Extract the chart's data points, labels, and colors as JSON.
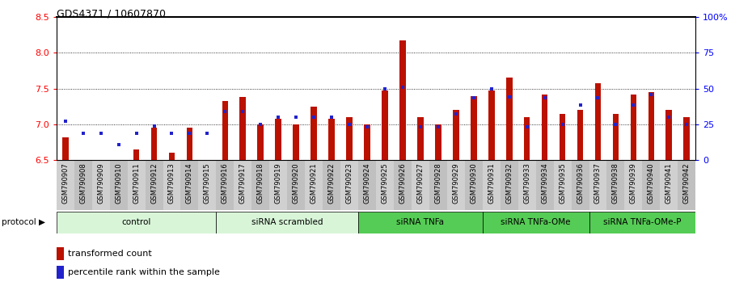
{
  "title": "GDS4371 / 10607870",
  "samples": [
    "GSM790907",
    "GSM790908",
    "GSM790909",
    "GSM790910",
    "GSM790911",
    "GSM790912",
    "GSM790913",
    "GSM790914",
    "GSM790915",
    "GSM790916",
    "GSM790917",
    "GSM790918",
    "GSM790919",
    "GSM790920",
    "GSM790921",
    "GSM790922",
    "GSM790923",
    "GSM790924",
    "GSM790925",
    "GSM790926",
    "GSM790927",
    "GSM790928",
    "GSM790929",
    "GSM790930",
    "GSM790931",
    "GSM790932",
    "GSM790933",
    "GSM790934",
    "GSM790935",
    "GSM790936",
    "GSM790937",
    "GSM790938",
    "GSM790939",
    "GSM790940",
    "GSM790941",
    "GSM790942"
  ],
  "red_values": [
    6.82,
    6.5,
    6.5,
    6.5,
    6.65,
    6.95,
    6.6,
    6.95,
    6.5,
    7.33,
    7.38,
    7.0,
    7.08,
    7.0,
    7.25,
    7.08,
    7.1,
    7.0,
    7.48,
    8.18,
    7.1,
    7.0,
    7.2,
    7.4,
    7.48,
    7.65,
    7.1,
    7.42,
    7.15,
    7.2,
    7.58,
    7.15,
    7.42,
    7.45,
    7.2,
    7.1
  ],
  "blue_values_left_axis": [
    7.05,
    6.88,
    6.87,
    6.72,
    6.87,
    6.98,
    6.87,
    6.87,
    6.87,
    7.18,
    7.18,
    7.0,
    7.1,
    7.1,
    7.1,
    7.1,
    7.0,
    6.97,
    7.5,
    7.52,
    6.97,
    6.97,
    7.15,
    7.37,
    7.5,
    7.38,
    6.97,
    7.37,
    7.0,
    7.27,
    7.37,
    7.0,
    7.27,
    7.42,
    7.1,
    7.0
  ],
  "group_boundaries": [
    0,
    9,
    17,
    24,
    30,
    36
  ],
  "group_labels": [
    "control",
    "siRNA scrambled",
    "siRNA TNFa",
    "siRNA TNFa-OMe",
    "siRNA TNFa-OMe-P"
  ],
  "group_colors": [
    "#d8f5d8",
    "#d8f5d8",
    "#55cc55",
    "#55cc55",
    "#55cc55"
  ],
  "ylim_left": [
    6.5,
    8.5
  ],
  "ylim_right": [
    0,
    100
  ],
  "yticks_left": [
    6.5,
    7.0,
    7.5,
    8.0,
    8.5
  ],
  "yticks_right": [
    0,
    25,
    50,
    75,
    100
  ],
  "bar_color": "#bb1100",
  "dot_color": "#2222cc",
  "base": 6.5,
  "bar_width": 0.35
}
